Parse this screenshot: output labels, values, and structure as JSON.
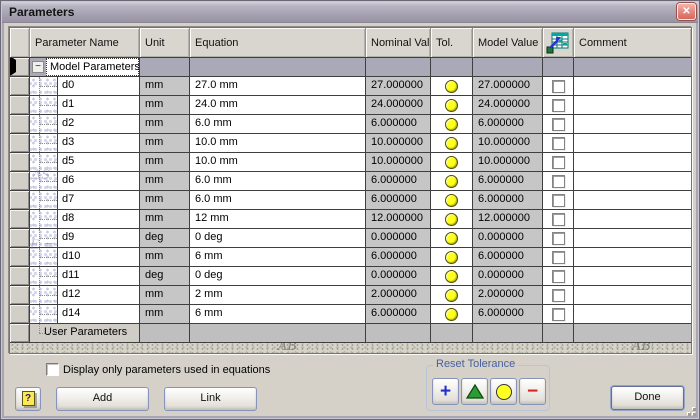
{
  "window": {
    "title": "Parameters",
    "close_glyph": "✕"
  },
  "table": {
    "header": {
      "columns": [
        "Parameter Name",
        "Unit",
        "Equation",
        "Nominal Value",
        "Tol.",
        "Model Value",
        "Comment"
      ],
      "export_column_icon": "export-parameter-spreadsheet-icon"
    },
    "group_rows": {
      "model": {
        "label": "Model Parameters",
        "collapse_glyph": "−"
      },
      "user": {
        "label": "User Parameters"
      }
    },
    "rows": [
      {
        "name": "d0",
        "unit": "mm",
        "equation": "27.0 mm",
        "nominal": "27.000000",
        "tolerance": "yellow-circle",
        "model": "27.000000",
        "export_checked": false,
        "comment": ""
      },
      {
        "name": "d1",
        "unit": "mm",
        "equation": "24.0 mm",
        "nominal": "24.000000",
        "tolerance": "yellow-circle",
        "model": "24.000000",
        "export_checked": false,
        "comment": ""
      },
      {
        "name": "d2",
        "unit": "mm",
        "equation": "6.0 mm",
        "nominal": "6.000000",
        "tolerance": "yellow-circle",
        "model": "6.000000",
        "export_checked": false,
        "comment": ""
      },
      {
        "name": "d3",
        "unit": "mm",
        "equation": "10.0 mm",
        "nominal": "10.000000",
        "tolerance": "yellow-circle",
        "model": "10.000000",
        "export_checked": false,
        "comment": ""
      },
      {
        "name": "d5",
        "unit": "mm",
        "equation": "10.0 mm",
        "nominal": "10.000000",
        "tolerance": "yellow-circle",
        "model": "10.000000",
        "export_checked": false,
        "comment": ""
      },
      {
        "name": "d6",
        "unit": "mm",
        "equation": "6.0 mm",
        "nominal": "6.000000",
        "tolerance": "yellow-circle",
        "model": "6.000000",
        "export_checked": false,
        "comment": ""
      },
      {
        "name": "d7",
        "unit": "mm",
        "equation": "6.0 mm",
        "nominal": "6.000000",
        "tolerance": "yellow-circle",
        "model": "6.000000",
        "export_checked": false,
        "comment": ""
      },
      {
        "name": "d8",
        "unit": "mm",
        "equation": "12 mm",
        "nominal": "12.000000",
        "tolerance": "yellow-circle",
        "model": "12.000000",
        "export_checked": false,
        "comment": ""
      },
      {
        "name": "d9",
        "unit": "deg",
        "equation": "0 deg",
        "nominal": "0.000000",
        "tolerance": "yellow-circle",
        "model": "0.000000",
        "export_checked": false,
        "comment": ""
      },
      {
        "name": "d10",
        "unit": "mm",
        "equation": "6 mm",
        "nominal": "6.000000",
        "tolerance": "yellow-circle",
        "model": "6.000000",
        "export_checked": false,
        "comment": ""
      },
      {
        "name": "d11",
        "unit": "deg",
        "equation": "0 deg",
        "nominal": "0.000000",
        "tolerance": "yellow-circle",
        "model": "0.000000",
        "export_checked": false,
        "comment": ""
      },
      {
        "name": "d12",
        "unit": "mm",
        "equation": "2 mm",
        "nominal": "2.000000",
        "tolerance": "yellow-circle",
        "model": "2.000000",
        "export_checked": false,
        "comment": ""
      },
      {
        "name": "d14",
        "unit": "mm",
        "equation": "6 mm",
        "nominal": "6.000000",
        "tolerance": "yellow-circle",
        "model": "6.000000",
        "export_checked": false,
        "comment": ""
      }
    ]
  },
  "watermark": {
    "formulas": [
      "ΔS",
      "E ="
    ],
    "strip_glyph": "AB"
  },
  "footer": {
    "filter_checkbox": {
      "label": "Display only parameters used in equations",
      "checked": false
    },
    "help_button": "?",
    "add_button": "Add",
    "link_button": "Link",
    "reset_tolerance": {
      "title": "Reset Tolerance",
      "buttons": [
        "plus",
        "triangle",
        "circle",
        "minus"
      ]
    },
    "done_button": "Done"
  },
  "colors": {
    "tolerance_yellow": "#ffff1e",
    "group_row_gray": "#a9a9b8",
    "readonly_cell_gray": "#c6c6c6",
    "plus_blue": "#2230cc",
    "triangle_green": "#2e9b33",
    "minus_red": "#dd2222",
    "groupbox_label_blue": "#49609f"
  }
}
